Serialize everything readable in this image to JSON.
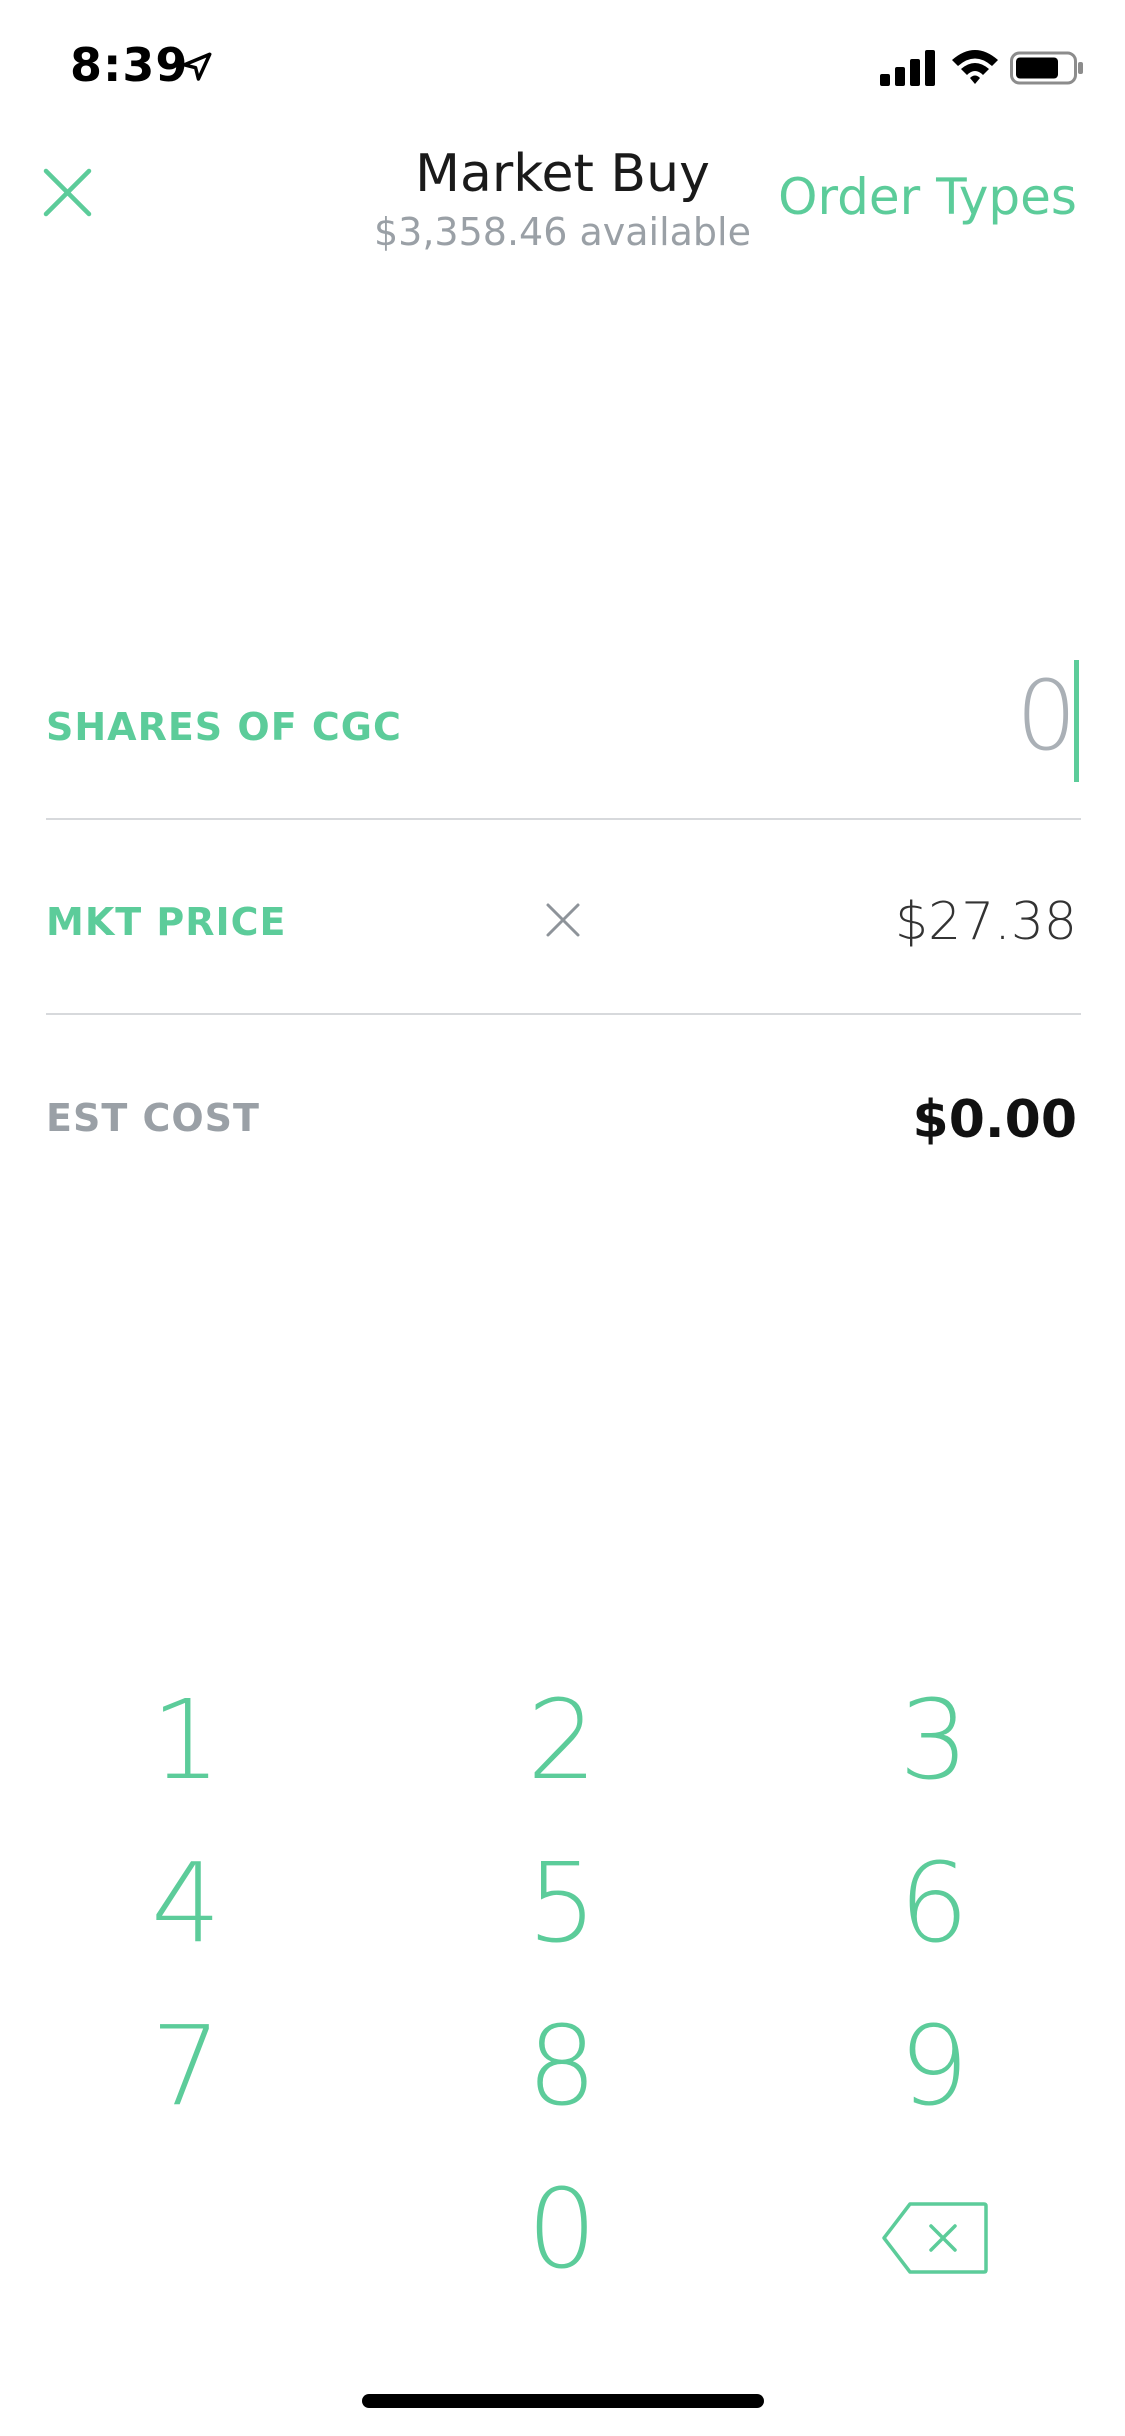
{
  "status": {
    "time": "8:39"
  },
  "header": {
    "title": "Market Buy",
    "subtitle": "$3,358.46 available",
    "order_types_label": "Order Types"
  },
  "form": {
    "shares_label": "SHARES OF CGC",
    "shares_value": "0",
    "mkt_price_label": "MKT PRICE",
    "mkt_price_value": "$27.38",
    "est_cost_label": "EST COST",
    "est_cost_value": "$0.00"
  },
  "keypad": {
    "keys": [
      "1",
      "2",
      "3",
      "4",
      "5",
      "6",
      "7",
      "8",
      "9",
      "0"
    ]
  },
  "colors": {
    "accent": "#5ccc9a",
    "muted": "#9aa0a6"
  },
  "icons": {
    "close": "close-icon",
    "clear": "clear-icon",
    "backspace": "backspace-icon"
  }
}
